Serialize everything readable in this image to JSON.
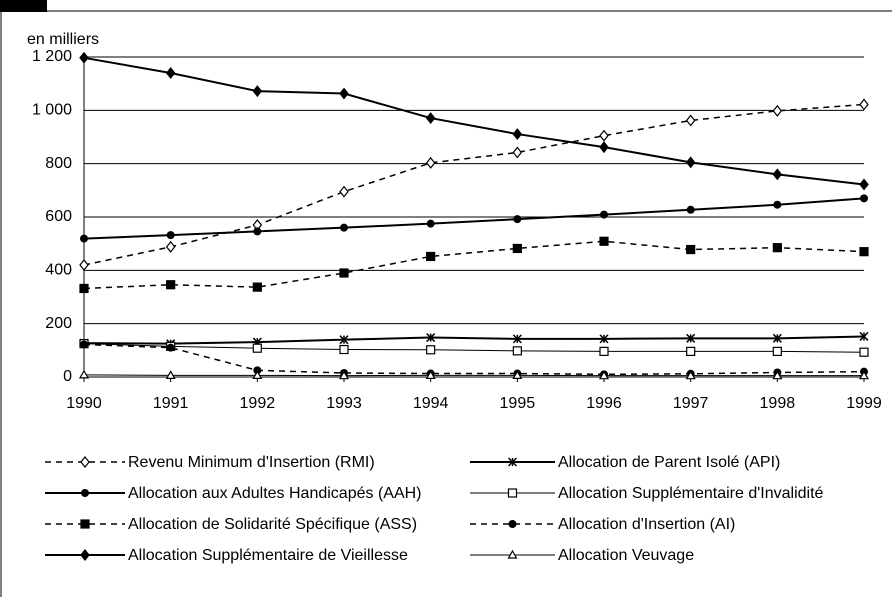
{
  "chart_data": {
    "type": "line",
    "y_label": "en milliers",
    "x": [
      1990,
      1991,
      1992,
      1993,
      1994,
      1995,
      1996,
      1997,
      1998,
      1999
    ],
    "xlim": [
      1990,
      1999
    ],
    "xticks": [
      1990,
      1991,
      1992,
      1993,
      1994,
      1995,
      1996,
      1997,
      1998,
      1999
    ],
    "ylim": [
      0,
      1200
    ],
    "yticks": [
      0,
      200,
      400,
      600,
      800,
      {
        "value": 1000,
        "label": "1 000"
      },
      {
        "value": 1200,
        "label": "1 200"
      }
    ],
    "grid": true,
    "series": [
      {
        "name": "Revenu Minimum d'Insertion (RMI)",
        "color": "#000000",
        "marker": "diamond-open",
        "dash": true,
        "width": 1.5,
        "values": [
          420,
          488,
          570,
          695,
          803,
          842,
          905,
          962,
          998,
          1022
        ]
      },
      {
        "name": "Allocation de Parent Isolé (API)",
        "color": "#000000",
        "marker": "asterisk",
        "dash": false,
        "width": 2,
        "values": [
          127,
          125,
          131,
          140,
          148,
          143,
          143,
          145,
          145,
          152
        ]
      },
      {
        "name": "Allocation aux Adultes Handicapés (AAH)",
        "color": "#000000",
        "marker": "circle",
        "dash": false,
        "width": 2,
        "values": [
          519,
          532,
          546,
          560,
          575,
          592,
          609,
          627,
          646,
          670
        ]
      },
      {
        "name": "Allocation Supplémentaire d'Invalidité",
        "color": "#000000",
        "marker": "square-open",
        "dash": false,
        "width": 1,
        "values": [
          125,
          115,
          108,
          103,
          102,
          98,
          96,
          96,
          96,
          93
        ]
      },
      {
        "name": "Allocation de Solidarité Spécifique (ASS)",
        "color": "#000000",
        "marker": "square",
        "dash": true,
        "width": 1.5,
        "values": [
          332,
          346,
          337,
          390,
          452,
          482,
          509,
          478,
          485,
          470
        ]
      },
      {
        "name": "Allocation d'Insertion (AI)",
        "color": "#000000",
        "marker": "circle",
        "dash": true,
        "width": 1.5,
        "values": [
          122,
          110,
          25,
          15,
          13,
          13,
          10,
          12,
          17,
          20
        ]
      },
      {
        "name": "Allocation Supplémentaire de Vieillesse",
        "color": "#000000",
        "marker": "diamond",
        "dash": false,
        "width": 2,
        "values": [
          1197,
          1140,
          1072,
          1063,
          971,
          911,
          862,
          805,
          760,
          722
        ]
      },
      {
        "name": "Allocation Veuvage",
        "color": "#000000",
        "marker": "triangle-open",
        "dash": false,
        "width": 1,
        "values": [
          8,
          6,
          6,
          5,
          6,
          6,
          5,
          5,
          5,
          5
        ]
      }
    ]
  }
}
